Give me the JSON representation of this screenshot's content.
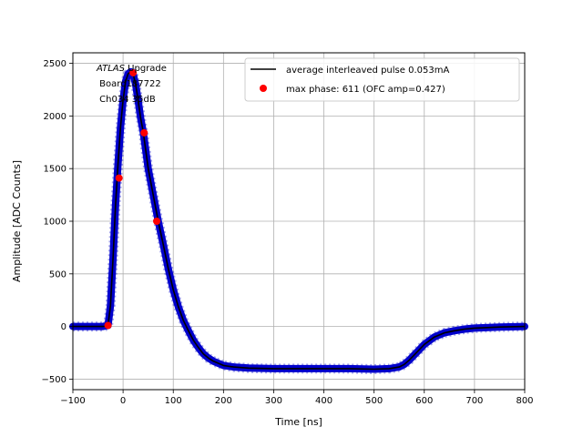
{
  "chart_data": {
    "type": "line",
    "xlabel": "Time [ns]",
    "ylabel": "Amplitude [ADC Counts]",
    "xlim": [
      -100,
      800
    ],
    "ylim": [
      -600,
      2600
    ],
    "xticks": [
      -100,
      0,
      100,
      200,
      300,
      400,
      500,
      600,
      700,
      800
    ],
    "yticks": [
      -500,
      0,
      500,
      1000,
      1500,
      2000,
      2500
    ],
    "grid": true,
    "legend_placement": "top-right",
    "annotation": {
      "atlas": "ATLAS",
      "line1_rest": " Upgrade",
      "line2": " Board187722",
      "line3": " Ch034 35dB"
    },
    "series": [
      {
        "name": "average interleaved pulse 0.053mA",
        "kind": "line",
        "color": "#000000",
        "x": [
          -100,
          -40,
          -30,
          -25,
          -20,
          -15,
          -10,
          -5,
          0,
          5,
          10,
          15,
          20,
          25,
          30,
          35,
          40,
          50,
          60,
          70,
          80,
          90,
          100,
          110,
          120,
          130,
          140,
          150,
          160,
          170,
          180,
          200,
          220,
          250,
          300,
          350,
          400,
          450,
          500,
          530,
          550,
          560,
          570,
          580,
          590,
          600,
          620,
          640,
          660,
          680,
          700,
          750,
          800
        ],
        "y": [
          0,
          0,
          10,
          200,
          650,
          1150,
          1550,
          1900,
          2150,
          2330,
          2400,
          2420,
          2400,
          2300,
          2150,
          1980,
          1850,
          1500,
          1250,
          1000,
          780,
          550,
          350,
          190,
          60,
          -40,
          -130,
          -200,
          -260,
          -300,
          -330,
          -370,
          -385,
          -395,
          -400,
          -400,
          -400,
          -400,
          -405,
          -400,
          -385,
          -360,
          -320,
          -270,
          -220,
          -170,
          -100,
          -60,
          -40,
          -25,
          -15,
          -5,
          0
        ]
      },
      {
        "name": "max phase: 611 (OFC amp=0.427)",
        "kind": "points",
        "color": "#ff0000",
        "x": [
          -30,
          -8,
          20,
          42,
          67
        ],
        "y": [
          10,
          1410,
          2410,
          1840,
          1000
        ]
      }
    ],
    "scatter_band_color": "#0000cc"
  }
}
